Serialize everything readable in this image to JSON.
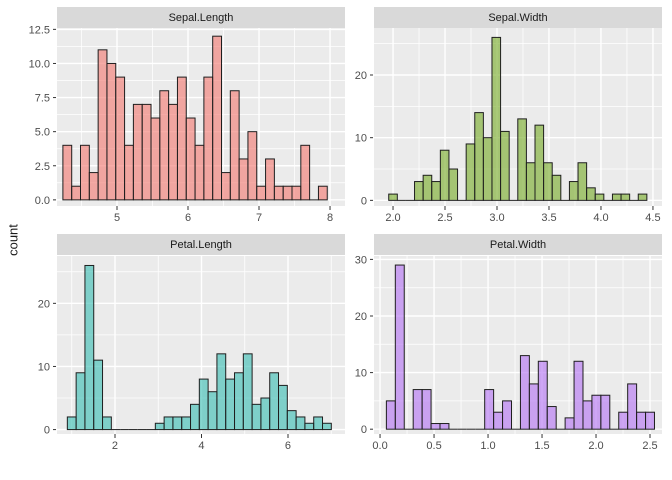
{
  "chart_data": {
    "type": "bar",
    "subtype": "faceted-histograms",
    "facet_layout": "2x2",
    "ylabel": "count",
    "theme": {
      "background": "#FFFFFF",
      "panel_bg": "#EBEBEB",
      "strip_bg": "#D9D9D9",
      "strip_text_color": "#1A1A1A",
      "grid_color": "#FFFFFF",
      "axis_text_color": "#4D4D4D",
      "tick_color": "#333333",
      "bar_stroke": "#1E1E1E"
    },
    "panels": [
      {
        "id": "sepal-length",
        "title": "Sepal.Length",
        "fill": "rgba(243,127,120,0.65)",
        "fill_on_panel_hex": "#F0A5A0",
        "bin_start": 4.238,
        "binwidth": 0.1241,
        "counts": [
          4,
          1,
          4,
          2,
          11,
          10,
          9,
          4,
          7,
          7,
          6,
          8,
          7,
          9,
          6,
          4,
          9,
          12,
          2,
          8,
          3,
          5,
          1,
          3,
          1,
          1,
          1,
          4,
          0,
          1
        ],
        "x_range": [
          4.155,
          8.211
        ],
        "y_range": [
          -0.45,
          12.6
        ],
        "x_ticks": [
          5,
          6,
          7,
          8
        ],
        "x_tick_labels": [
          "5",
          "6",
          "7",
          "8"
        ],
        "x_minor": [
          4.5,
          5.5,
          6.5,
          7.5
        ],
        "y_ticks": [
          0,
          2.5,
          5,
          7.5,
          10,
          12.5
        ],
        "y_tick_labels": [
          "0.0",
          "2.5",
          "5.0",
          "7.5",
          "10.0",
          "12.5"
        ],
        "y_minor": [
          1.25,
          3.75,
          6.25,
          8.75,
          11.25
        ]
      },
      {
        "id": "sepal-width",
        "title": "Sepal.Width",
        "fill": "rgba(126,175,50,0.65)",
        "fill_on_panel_hex": "#A4C473",
        "bin_start": 1.9586,
        "binwidth": 0.08276,
        "counts": [
          1,
          0,
          0,
          3,
          4,
          3,
          8,
          5,
          0,
          9,
          14,
          10,
          26,
          11,
          0,
          13,
          6,
          12,
          6,
          4,
          0,
          3,
          6,
          2,
          1,
          0,
          1,
          1,
          0,
          1
        ],
        "x_range": [
          1.817,
          4.587
        ],
        "y_range": [
          -0.9,
          27.5
        ],
        "x_ticks": [
          2.0,
          2.5,
          3.0,
          3.5,
          4.0,
          4.5
        ],
        "x_tick_labels": [
          "2.0",
          "2.5",
          "3.0",
          "3.5",
          "4.0",
          "4.5"
        ],
        "x_minor": [
          2.25,
          2.75,
          3.25,
          3.75,
          4.25
        ],
        "y_ticks": [
          0,
          10,
          20
        ],
        "y_tick_labels": [
          "0",
          "10",
          "20"
        ],
        "y_minor": [
          5,
          15,
          25
        ]
      },
      {
        "id": "petal-length",
        "title": "Petal.Length",
        "fill": "rgba(67,192,183,0.65)",
        "fill_on_panel_hex": "#7ECFC9",
        "bin_start": 0.898,
        "binwidth": 0.20345,
        "counts": [
          2,
          9,
          26,
          11,
          2,
          0,
          0,
          0,
          0,
          0,
          1,
          2,
          2,
          2,
          4,
          8,
          6,
          12,
          8,
          9,
          12,
          4,
          5,
          9,
          7,
          3,
          2,
          1,
          2,
          1
        ],
        "x_range": [
          0.659,
          7.318
        ],
        "y_range": [
          -0.7,
          27.5
        ],
        "x_ticks": [
          2,
          4,
          6
        ],
        "x_tick_labels": [
          "2",
          "4",
          "6"
        ],
        "x_minor": [
          1,
          3,
          5,
          7
        ],
        "y_ticks": [
          0,
          10,
          20
        ],
        "y_tick_labels": [
          "0",
          "10",
          "20"
        ],
        "y_minor": [
          5,
          15,
          25
        ]
      },
      {
        "id": "petal-width",
        "title": "Petal.Width",
        "fill": "rgba(183,121,242,0.65)",
        "fill_on_panel_hex": "#C9A1F0",
        "bin_start": 0.0586,
        "binwidth": 0.08276,
        "counts": [
          5,
          29,
          0,
          7,
          7,
          1,
          1,
          0,
          0,
          0,
          0,
          7,
          3,
          5,
          0,
          13,
          8,
          12,
          4,
          0,
          2,
          12,
          5,
          6,
          6,
          0,
          3,
          8,
          3,
          3
        ],
        "x_range": [
          -0.056,
          2.611
        ],
        "y_range": [
          -0.85,
          30.6
        ],
        "x_ticks": [
          0.0,
          0.5,
          1.0,
          1.5,
          2.0,
          2.5
        ],
        "x_tick_labels": [
          "0.0",
          "0.5",
          "1.0",
          "1.5",
          "2.0",
          "2.5"
        ],
        "x_minor": [
          0.25,
          0.75,
          1.25,
          1.75,
          2.25
        ],
        "y_ticks": [
          0,
          10,
          20,
          30
        ],
        "y_tick_labels": [
          "0",
          "10",
          "20",
          "30"
        ],
        "y_minor": [
          5,
          15,
          25
        ]
      }
    ]
  }
}
